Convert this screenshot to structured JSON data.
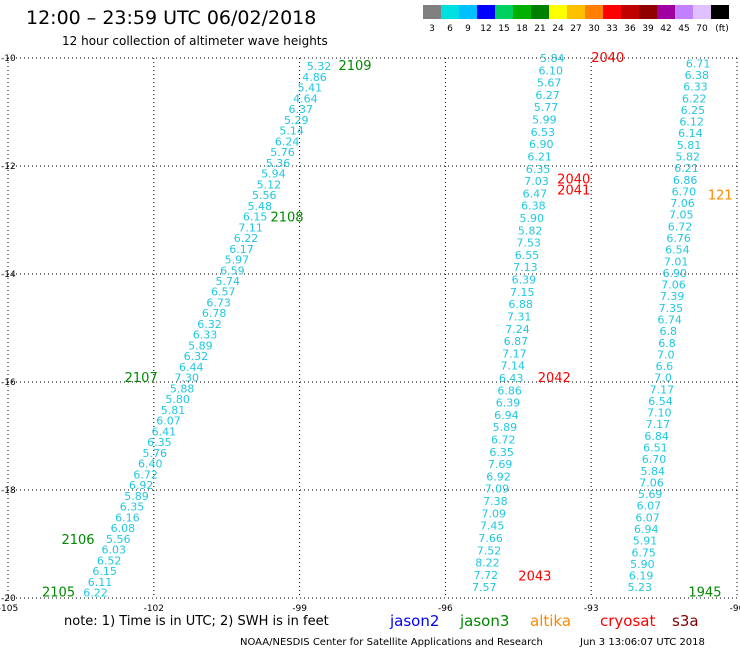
{
  "header": {
    "title": "12:00 – 23:59 UTC 06/02/2018",
    "subtitle": "12 hour collection of altimeter wave heights"
  },
  "colorbar": {
    "ticks": [
      "3",
      "6",
      "9",
      "12",
      "15",
      "18",
      "21",
      "24",
      "27",
      "30",
      "33",
      "36",
      "39",
      "42",
      "45",
      "70",
      "(ft)"
    ],
    "colors": [
      "#808080",
      "#00e0e0",
      "#00c0ff",
      "#0000ff",
      "#00d060",
      "#00b000",
      "#008000",
      "#ffff00",
      "#ffc000",
      "#ff8000",
      "#ff0000",
      "#c00000",
      "#900000",
      "#a000a0",
      "#c080ff",
      "#e0c0ff",
      "#000000"
    ]
  },
  "footer": {
    "note": "note: 1) Time is in UTC; 2) SWH is in feet",
    "credit": "NOAA/NESDIS Center for Satellite Applications and Research",
    "timestamp": "Jun  3 13:06:07 UTC 2018"
  },
  "legend": [
    {
      "name": "jason2",
      "color": "#0000ff"
    },
    {
      "name": "jason3",
      "color": "#008800"
    },
    {
      "name": "altika",
      "color": "#ff8800"
    },
    {
      "name": "cryosat",
      "color": "#ff0000"
    },
    {
      "name": "s3a",
      "color": "#800000"
    }
  ],
  "chart_data": {
    "type": "scatter",
    "xlim": [
      -105,
      -90
    ],
    "ylim": [
      -20,
      -10
    ],
    "x_ticks": [
      "-105",
      "-102",
      "-99",
      "-96",
      "-93",
      "-90"
    ],
    "y_ticks": [
      "-10",
      "-12",
      "-14",
      "-16",
      "-18",
      "-20"
    ],
    "grid": true,
    "value_color": "#20c8e0",
    "tracks": [
      {
        "lon_top": -98.6,
        "lat_top": -10.15,
        "lon_bottom": -103.2,
        "lat_bottom": -19.9,
        "values": [
          "5.32",
          "4.86",
          "5.41",
          "4.64",
          "6.37",
          "5.29",
          "5.14",
          "6.24",
          "5.76",
          "5.36",
          "5.94",
          "5.12",
          "5.56",
          "5.48",
          "6.15",
          "7.11",
          "6.22",
          "6.17",
          "5.97",
          "6.59",
          "5.74",
          "6.57",
          "6.73",
          "6.78",
          "6.32",
          "6.33",
          "5.89",
          "6.32",
          "6.44",
          "7.30",
          "5.88",
          "5.80",
          "5.81",
          "6.07",
          "6.41",
          "6.35",
          "5.76",
          "6.40",
          "6.72",
          "6.92",
          "5.89",
          "6.35",
          "6.16",
          "6.08",
          "5.56",
          "6.03",
          "6.52",
          "6.15",
          "6.11",
          "6.22"
        ]
      },
      {
        "lon_top": -93.8,
        "lat_top": -10.0,
        "lon_bottom": -95.2,
        "lat_bottom": -19.8,
        "values": [
          "5.84",
          "6.10",
          "5.67",
          "6.27",
          "5.77",
          "5.99",
          "6.53",
          "6.90",
          "6.21",
          "6.35",
          "7.03",
          "6.47",
          "6.38",
          "5.90",
          "5.82",
          "7.53",
          "6.55",
          "7.13",
          "6.39",
          "7.15",
          "6.88",
          "7.31",
          "7.24",
          "6.87",
          "7.17",
          "7.14",
          "6.43",
          "6.86",
          "6.39",
          "6.94",
          "5.89",
          "6.72",
          "6.35",
          "7.69",
          "6.92",
          "7.09",
          "7.38",
          "7.09",
          "7.45",
          "7.66",
          "7.52",
          "8.22",
          "7.72",
          "7.57"
        ]
      },
      {
        "lon_top": -90.8,
        "lat_top": -10.1,
        "lon_bottom": -92.0,
        "lat_bottom": -19.8,
        "values": [
          "6.71",
          "6.38",
          "6.33",
          "6.22",
          "6.25",
          "6.12",
          "6.14",
          "5.81",
          "5.82",
          "6.21",
          "6.86",
          "6.70",
          "7.06",
          "7.05",
          "6.72",
          "6.76",
          "6.54",
          "7.01",
          "6.90",
          "7.06",
          "7.39",
          "7.35",
          "6.74",
          "6.8",
          "6.8",
          "7.0",
          "6.6",
          "7.0",
          "7.17",
          "6.54",
          "7.10",
          "7.17",
          "6.84",
          "6.51",
          "6.70",
          "5.84",
          "7.06",
          "5.69",
          "6.07",
          "6.07",
          "6.94",
          "5.91",
          "6.75",
          "5.90",
          "6.19",
          "5.23"
        ]
      }
    ],
    "time_labels": [
      {
        "text": "2109",
        "lon": -98.2,
        "lat": -10.15,
        "color": "#008800"
      },
      {
        "text": "2108",
        "lon": -99.6,
        "lat": -12.95,
        "color": "#008800"
      },
      {
        "text": "2107",
        "lon": -102.6,
        "lat": -15.93,
        "color": "#008800"
      },
      {
        "text": "2106",
        "lon": -103.9,
        "lat": -18.93,
        "color": "#008800"
      },
      {
        "text": "2105",
        "lon": -104.3,
        "lat": -19.9,
        "color": "#008800"
      },
      {
        "text": "2040",
        "lon": -93.0,
        "lat": -10.0,
        "color": "#ff0000"
      },
      {
        "text": "2040",
        "lon": -93.7,
        "lat": -12.25,
        "color": "#ff0000"
      },
      {
        "text": "2041",
        "lon": -93.7,
        "lat": -12.45,
        "color": "#ff0000"
      },
      {
        "text": "2042",
        "lon": -94.1,
        "lat": -15.93,
        "color": "#ff0000"
      },
      {
        "text": "2043",
        "lon": -94.5,
        "lat": -19.6,
        "color": "#ff0000"
      },
      {
        "text": "121",
        "lon": -90.6,
        "lat": -12.55,
        "color": "#ff8800"
      },
      {
        "text": "1945",
        "lon": -91.0,
        "lat": -19.9,
        "color": "#008800"
      }
    ]
  }
}
